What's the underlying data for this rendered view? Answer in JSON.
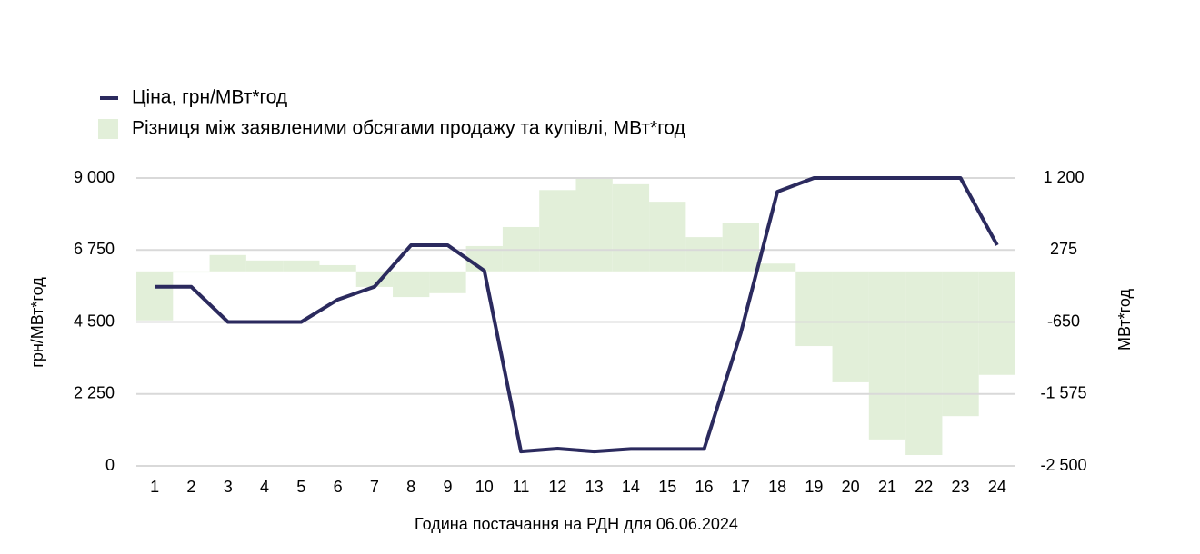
{
  "chart_data": {
    "type": "bar-line",
    "x_label": "Година постачання на РДН для 06.06.2024",
    "y_label": "грн/МВт*год",
    "y2_label": "МВт*год",
    "categories": [
      "1",
      "2",
      "3",
      "4",
      "5",
      "6",
      "7",
      "8",
      "9",
      "10",
      "11",
      "12",
      "13",
      "14",
      "15",
      "16",
      "17",
      "18",
      "19",
      "20",
      "21",
      "22",
      "23",
      "24"
    ],
    "series": [
      {
        "name": "Ціна, грн/МВт*год",
        "type": "line",
        "color": "#2b2a5e",
        "values": [
          5600,
          5600,
          4500,
          4500,
          4500,
          5200,
          5600,
          6900,
          6900,
          6100,
          450,
          540,
          450,
          530,
          530,
          530,
          4150,
          8570,
          9000,
          9000,
          9000,
          9000,
          9000,
          6900
        ]
      },
      {
        "name": "Різниця між заявленими обсягами продажу та купівлі, МВт*год",
        "type": "bar",
        "axis": "y2",
        "color": "#e2efd9",
        "values": [
          -630,
          -15,
          210,
          140,
          140,
          80,
          -200,
          -330,
          -280,
          325,
          570,
          1045,
          1200,
          1120,
          895,
          440,
          625,
          100,
          -960,
          -1425,
          -2160,
          -2360,
          -1860,
          -1330
        ]
      }
    ],
    "ylim": [
      0,
      9000
    ],
    "yticks": [
      0,
      {
        "value": 2250,
        "label": "2 250"
      },
      {
        "value": 4500,
        "label": "4 500"
      },
      {
        "value": 6750,
        "label": "6 750"
      },
      {
        "value": 9000,
        "label": "9 000"
      }
    ],
    "y2lim": [
      -2500,
      1200
    ],
    "y2ticks": [
      {
        "value": -2500,
        "label": "-2 500"
      },
      {
        "value": -1575,
        "label": "-1 575"
      },
      -650,
      275,
      {
        "value": 1200,
        "label": "1 200"
      }
    ],
    "grid": true
  }
}
